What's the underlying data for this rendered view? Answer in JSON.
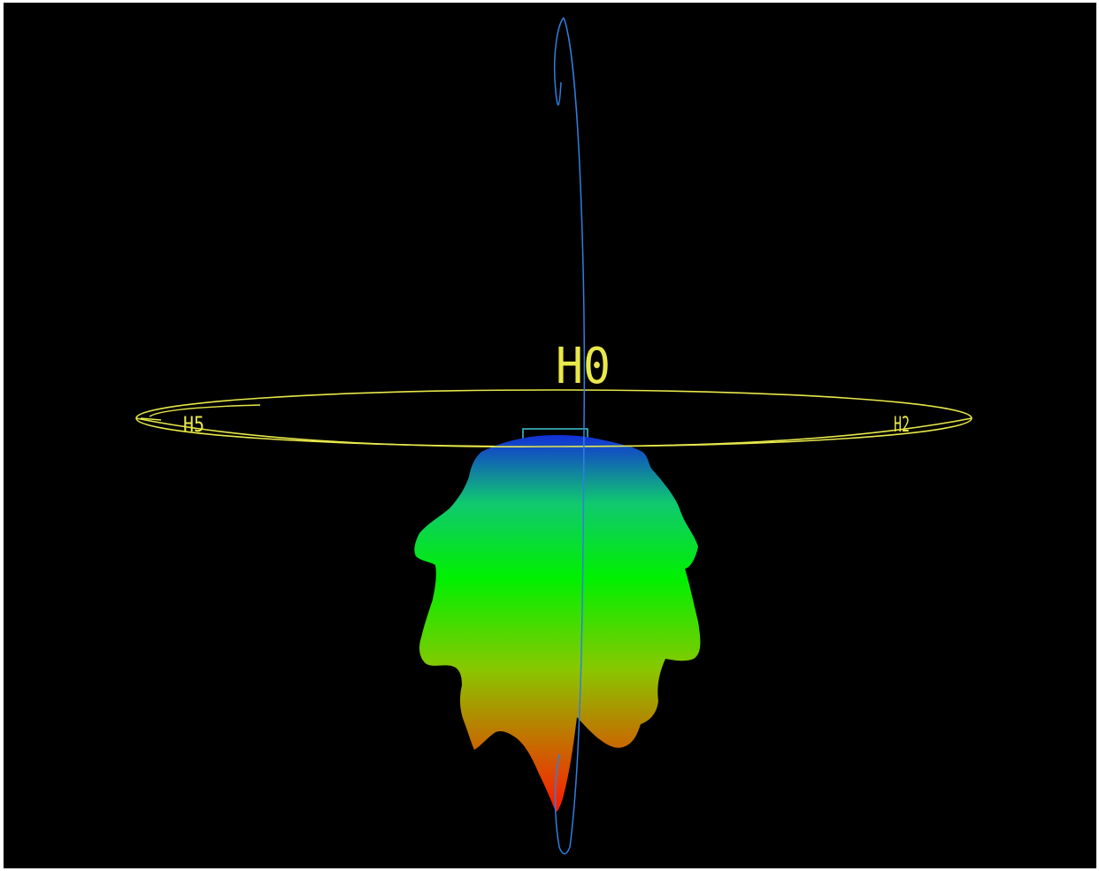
{
  "colors": {
    "background": "#000000",
    "frame": "#ffffff",
    "horizontal_ring": "#e8e84a",
    "vertical_ring": "#2f7fe0",
    "feed_box": "#3fb8c8",
    "gradient_top": "#1230d8",
    "gradient_upper": "#10c870",
    "gradient_mid": "#00f000",
    "gradient_lower": "#88c800",
    "gradient_bottom": "#ff1800"
  },
  "labels": {
    "top": "H0",
    "left": "H5",
    "right": "H2"
  },
  "icons": {
    "feed": "antenna-feed-icon"
  }
}
